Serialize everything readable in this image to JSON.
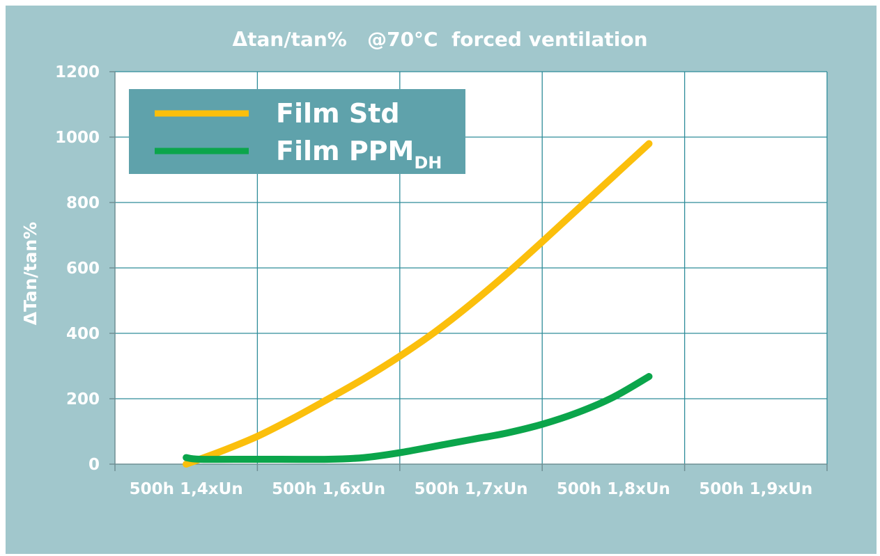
{
  "chart_data": {
    "type": "line",
    "title": "Δtan/tan%   @70°C  forced ventilation",
    "xlabel": "",
    "ylabel": "ΔTan/tan%",
    "categories": [
      "500h 1,4xUn",
      "500h 1,6xUn",
      "500h 1,7xUn",
      "500h 1,8xUn",
      "500h 1,9xUn"
    ],
    "ylim": [
      0,
      1200
    ],
    "yticks": [
      0,
      200,
      400,
      600,
      800,
      1000,
      1200
    ],
    "grid": true,
    "legend_position": "top-left",
    "series": [
      {
        "name": "Film Std",
        "legend_main": "Film Std",
        "legend_sub": "",
        "color": "#fbbf0c",
        "points": [
          {
            "x": 0.5,
            "y": 0
          },
          {
            "x": 0.75,
            "y": 40
          },
          {
            "x": 1.0,
            "y": 85
          },
          {
            "x": 1.25,
            "y": 140
          },
          {
            "x": 1.5,
            "y": 200
          },
          {
            "x": 1.75,
            "y": 262
          },
          {
            "x": 2.0,
            "y": 330
          },
          {
            "x": 2.25,
            "y": 405
          },
          {
            "x": 2.5,
            "y": 490
          },
          {
            "x": 2.75,
            "y": 582
          },
          {
            "x": 3.0,
            "y": 680
          },
          {
            "x": 3.25,
            "y": 780
          },
          {
            "x": 3.5,
            "y": 880
          },
          {
            "x": 3.75,
            "y": 980
          }
        ]
      },
      {
        "name": "Film PPMDH",
        "legend_main": "Film PPM",
        "legend_sub": "DH",
        "color": "#0ba54b",
        "points": [
          {
            "x": 0.5,
            "y": 20
          },
          {
            "x": 0.6,
            "y": 15
          },
          {
            "x": 1.0,
            "y": 15
          },
          {
            "x": 1.5,
            "y": 15
          },
          {
            "x": 1.75,
            "y": 20
          },
          {
            "x": 2.0,
            "y": 35
          },
          {
            "x": 2.25,
            "y": 55
          },
          {
            "x": 2.5,
            "y": 75
          },
          {
            "x": 2.75,
            "y": 95
          },
          {
            "x": 3.0,
            "y": 122
          },
          {
            "x": 3.25,
            "y": 158
          },
          {
            "x": 3.5,
            "y": 205
          },
          {
            "x": 3.75,
            "y": 268
          }
        ]
      }
    ]
  }
}
